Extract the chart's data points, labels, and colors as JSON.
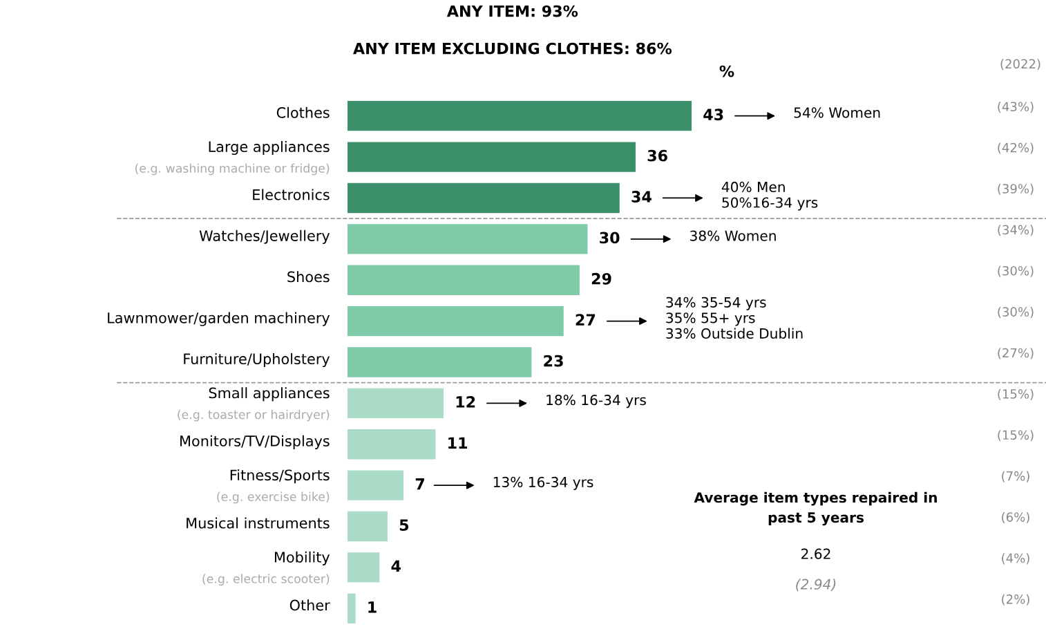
{
  "chart_data": {
    "type": "bar",
    "orientation": "horizontal",
    "title": "ANY ITEM: 93%",
    "subtitle": "ANY ITEM EXCLUDING CLOTHES: 86%",
    "xlabel": "%",
    "categories": [
      "Clothes",
      "Large appliances\n(e.g. washing machine or fridge)",
      "Electronics",
      "Watches/Jewellery",
      "Shoes",
      "Lawnmower/garden machinery",
      "Furniture/Upholstery",
      "Small appliances\n(e.g. toaster or hairdryer)",
      "Monitors/TV/Displays",
      "Fitness/Sports\n(e.g. exercise bike)",
      "Musical instruments",
      "Mobility\n(e.g. electric scooter)",
      "Other"
    ],
    "values": [
      43,
      36,
      34,
      30,
      29,
      27,
      23,
      12,
      11,
      7,
      5,
      4,
      1
    ],
    "colors": [
      "#3c8f6b",
      "#3c8f6b",
      "#3c8f6b",
      "#7fcaa8",
      "#7fcaa8",
      "#7fcaa8",
      "#7fcaa8",
      "#a9dbc6",
      "#a9dbc6",
      "#a9dbc6",
      "#a9dbc6",
      "#a9dbc6",
      "#a9dbc6"
    ],
    "data_labels": true,
    "annotations": [
      "54% Women",
      "40% Men\n50%16-34 yrs",
      "38% Women",
      "34% 35-54 yrs\n35% 55+ yrs\n33% Outside Dublin",
      "18% 16-34 yrs",
      "13% 16-34 yrs",
      "(2022)",
      "(43%)",
      "(42%)",
      "(39%)",
      "(34%)",
      "(30%)",
      "(30%)",
      "(27%)",
      "(15%)",
      "(15%)",
      "(7%)",
      "(6%)",
      "(4%)",
      "(2%)",
      "Average item types repaired in\npast 5 years",
      "2.62",
      "(2.94)"
    ]
  }
}
